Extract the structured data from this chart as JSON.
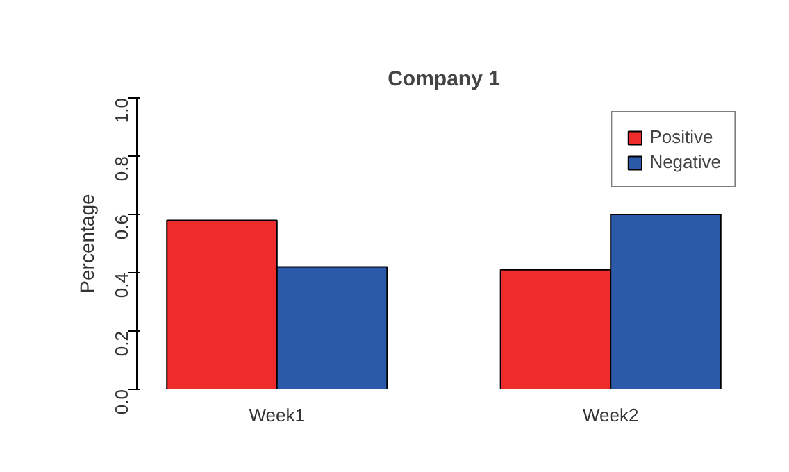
{
  "chart_data": {
    "type": "bar",
    "title": "Company 1",
    "ylabel": "Percentage",
    "categories": [
      "Week1",
      "Week2"
    ],
    "series": [
      {
        "name": "Positive",
        "color": "#ee2c2c",
        "values": [
          0.58,
          0.41
        ]
      },
      {
        "name": "Negative",
        "color": "#2b5aa8",
        "values": [
          0.42,
          0.6
        ]
      }
    ],
    "ylim": [
      0,
      1
    ],
    "yticks": [
      {
        "value": 0,
        "label": "0.0"
      },
      {
        "value": 0.2,
        "label": "0.2"
      },
      {
        "value": 0.4,
        "label": "0.4"
      },
      {
        "value": 0.6,
        "label": "0.6"
      },
      {
        "value": 0.8,
        "label": "0.8"
      },
      {
        "value": 1,
        "label": "1.0"
      }
    ],
    "grid": false,
    "legend": "top right"
  }
}
